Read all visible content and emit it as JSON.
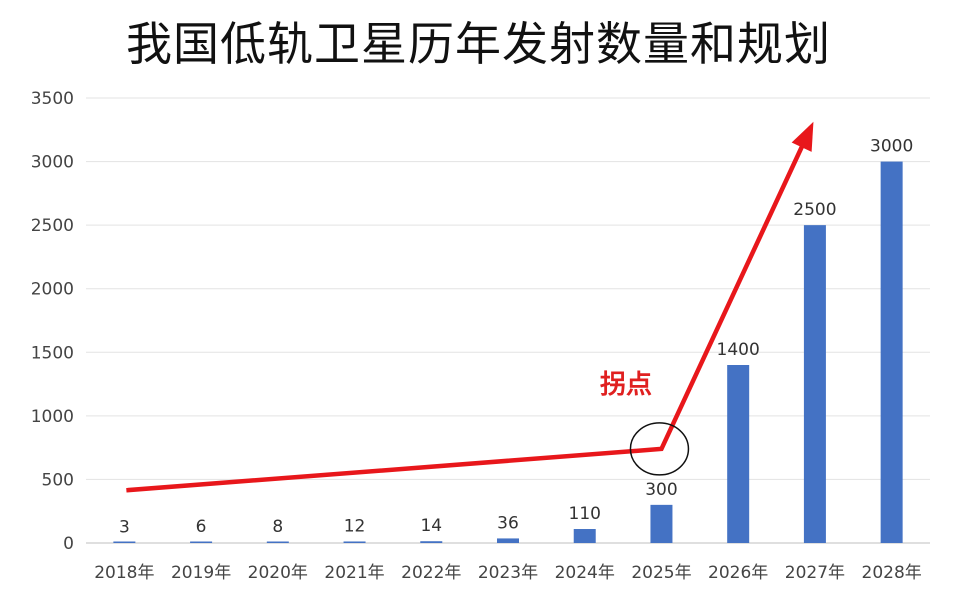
{
  "chart_data": {
    "type": "bar",
    "title": "我国低轨卫星历年发射数量和规划",
    "categories": [
      "2018年",
      "2019年",
      "2020年",
      "2021年",
      "2022年",
      "2023年",
      "2024年",
      "2025年",
      "2026年",
      "2027年",
      "2028年"
    ],
    "values": [
      3,
      6,
      8,
      12,
      14,
      36,
      110,
      300,
      1400,
      2500,
      3000
    ],
    "ylim": [
      0,
      3500
    ],
    "yticks": [
      0,
      500,
      1000,
      1500,
      2000,
      2500,
      3000,
      3500
    ],
    "grid": true,
    "bar_color": "#4472c4",
    "annotation": {
      "text": "拐点",
      "color": "#e02020"
    },
    "trend_arrow": {
      "color": "#e8171b"
    }
  }
}
